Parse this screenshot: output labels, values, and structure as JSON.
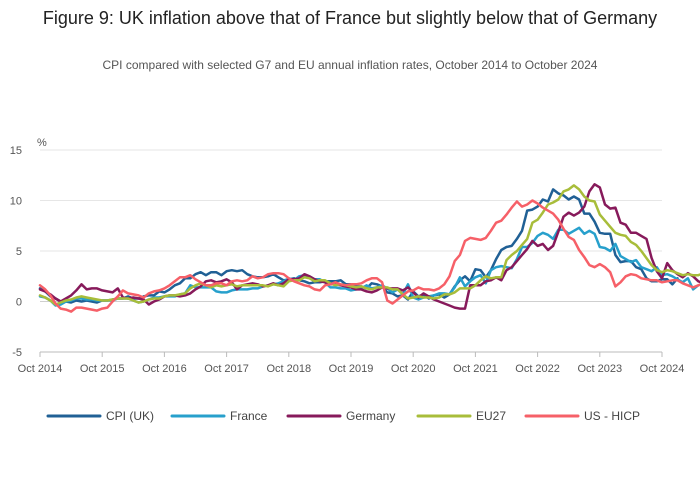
{
  "title": "Figure 9: UK inflation above that of France but slightly below that of Germany",
  "subtitle": "CPI compared with selected G7 and EU annual inflation rates, October 2014 to October 2024",
  "chart_data": {
    "type": "line",
    "title": "Figure 9: UK inflation above that of France but slightly below that of Germany",
    "subtitle": "CPI compared with selected G7 and EU annual inflation rates, October 2014 to October 2024",
    "ylabel": "%",
    "ylim": [
      -5,
      15
    ],
    "yticks": [
      -5,
      0,
      5,
      10,
      15
    ],
    "xlim": [
      "Oct 2014",
      "Oct 2024"
    ],
    "xticks": [
      "Oct 2014",
      "Oct 2015",
      "Oct 2016",
      "Oct 2017",
      "Oct 2018",
      "Oct 2019",
      "Oct 2020",
      "Oct 2021",
      "Oct 2022",
      "Oct 2023",
      "Oct 2024"
    ],
    "grid": true,
    "legend_position": "bottom",
    "x_resolution": "monthly values from Oct 2014",
    "series": [
      {
        "name": "CPI (UK)",
        "color": "#206095",
        "values": [
          1.3,
          1.0,
          0.5,
          0.3,
          0.0,
          0.0,
          -0.1,
          0.1,
          0.0,
          0.1,
          0.0,
          -0.1,
          0.1,
          0.1,
          0.2,
          0.3,
          0.3,
          0.5,
          0.3,
          0.3,
          0.5,
          0.6,
          0.6,
          1.0,
          0.9,
          1.2,
          1.6,
          1.8,
          2.3,
          2.3,
          2.7,
          2.9,
          2.6,
          2.9,
          2.9,
          2.6,
          3.0,
          3.1,
          3.0,
          3.1,
          2.7,
          2.5,
          2.4,
          2.4,
          2.5,
          2.7,
          2.4,
          2.1,
          2.2,
          2.3,
          2.1,
          2.0,
          1.8,
          1.9,
          1.9,
          2.0,
          2.0,
          2.0,
          2.1,
          1.7,
          1.7,
          1.5,
          1.5,
          1.3,
          1.8,
          1.7,
          1.5,
          0.9,
          0.8,
          0.5,
          0.6,
          0.2,
          1.0,
          0.5,
          0.7,
          0.3,
          0.6,
          0.7,
          0.4,
          0.7,
          1.5,
          2.1,
          2.5,
          2.0,
          3.2,
          3.1,
          2.4,
          3.1,
          4.2,
          5.1,
          5.4,
          5.5,
          6.2,
          7.0,
          9.0,
          9.1,
          9.4,
          10.1,
          9.9,
          11.1,
          10.7,
          10.5,
          10.1,
          10.4,
          10.1,
          8.7,
          8.7,
          7.9,
          6.8,
          6.7,
          6.7,
          4.6,
          3.9,
          4.0,
          4.0,
          3.4,
          3.2,
          2.3,
          2.0,
          2.0,
          2.2,
          2.2,
          1.7,
          2.3
        ]
      },
      {
        "name": "France",
        "color": "#27a0cc",
        "values": [
          0.5,
          0.4,
          0.1,
          -0.4,
          -0.3,
          0.0,
          0.1,
          0.3,
          0.3,
          0.2,
          0.2,
          0.1,
          0.1,
          0.1,
          0.1,
          0.3,
          0.3,
          0.3,
          0.1,
          -0.1,
          0.0,
          0.2,
          0.4,
          0.4,
          0.5,
          0.5,
          0.5,
          0.7,
          0.8,
          1.6,
          1.4,
          1.4,
          1.4,
          1.4,
          1.0,
          0.9,
          0.9,
          1.1,
          1.2,
          1.2,
          1.2,
          1.3,
          1.3,
          1.5,
          1.6,
          1.7,
          1.8,
          2.0,
          2.3,
          2.1,
          2.5,
          2.6,
          2.5,
          2.2,
          2.2,
          1.9,
          1.4,
          1.4,
          1.3,
          1.3,
          1.1,
          1.2,
          1.3,
          1.6,
          1.3,
          1.4,
          1.6,
          1.3,
          0.9,
          1.2,
          0.7,
          1.7,
          0.4,
          0.2,
          0.4,
          0.5,
          0.6,
          0.8,
          0.8,
          0.7,
          1.4,
          2.4,
          1.5,
          2.0,
          2.4,
          2.6,
          1.8,
          3.1,
          3.4,
          3.5,
          3.4,
          3.3,
          4.2,
          5.4,
          5.4,
          5.8,
          6.5,
          6.8,
          6.6,
          6.2,
          7.1,
          7.1,
          6.7,
          7.0,
          7.3,
          6.7,
          7.0,
          6.7,
          5.4,
          5.3,
          5.0,
          5.7,
          4.5,
          4.2,
          3.9,
          4.1,
          3.4,
          3.2,
          3.0,
          3.4,
          2.6,
          2.7,
          2.5,
          2.2,
          1.9,
          2.3,
          1.2,
          1.6
        ]
      },
      {
        "name": "Germany",
        "color": "#871a5b",
        "values": [
          1.2,
          1.0,
          0.7,
          0.3,
          0.0,
          0.3,
          0.6,
          1.1,
          1.7,
          1.2,
          1.3,
          1.3,
          1.1,
          1.0,
          0.9,
          1.3,
          0.4,
          0.3,
          0.4,
          0.3,
          0.2,
          -0.3,
          0.0,
          0.2,
          0.5,
          0.6,
          0.6,
          0.5,
          0.6,
          0.8,
          1.2,
          1.5,
          2.0,
          2.1,
          1.9,
          2.0,
          2.2,
          1.9,
          1.2,
          1.6,
          1.7,
          1.8,
          1.7,
          1.5,
          1.6,
          1.8,
          1.6,
          1.8,
          2.2,
          2.2,
          2.3,
          2.7,
          2.5,
          2.2,
          2.0,
          1.9,
          1.7,
          1.7,
          1.6,
          1.5,
          1.4,
          1.2,
          1.2,
          1.0,
          0.9,
          1.1,
          1.4,
          1.3,
          1.3,
          1.3,
          1.1,
          1.4,
          0.9,
          0.4,
          0.8,
          0.5,
          0.2,
          0.0,
          -0.2,
          -0.4,
          -0.6,
          -0.7,
          -0.7,
          1.6,
          1.6,
          1.6,
          2.0,
          2.1,
          2.4,
          2.1,
          3.1,
          3.4,
          4.0,
          4.6,
          5.2,
          6.0,
          5.5,
          5.7,
          5.1,
          5.5,
          6.9,
          8.4,
          8.8,
          8.5,
          8.8,
          9.4,
          10.9,
          11.6,
          11.3,
          9.6,
          9.2,
          9.3,
          7.8,
          7.6,
          6.8,
          6.8,
          6.5,
          6.2,
          4.3,
          3.0,
          2.3,
          3.8,
          3.1,
          2.7,
          2.4,
          2.8,
          2.5,
          2.0,
          1.8,
          2.4
        ]
      },
      {
        "name": "EU27",
        "color": "#a8bd3a",
        "values": [
          0.6,
          0.4,
          0.1,
          -0.3,
          -0.1,
          0.1,
          0.2,
          0.4,
          0.5,
          0.4,
          0.3,
          0.2,
          0.1,
          0.1,
          0.2,
          0.3,
          0.3,
          0.3,
          0.1,
          -0.1,
          0.0,
          0.2,
          0.3,
          0.3,
          0.5,
          0.6,
          0.6,
          0.7,
          0.8,
          1.3,
          1.6,
          1.8,
          1.6,
          1.4,
          1.6,
          1.5,
          1.6,
          1.7,
          1.5,
          1.6,
          1.6,
          1.6,
          1.6,
          1.6,
          1.5,
          1.7,
          1.6,
          1.5,
          2.0,
          2.1,
          2.1,
          2.4,
          2.3,
          2.0,
          2.1,
          2.1,
          1.8,
          1.6,
          1.7,
          1.6,
          1.5,
          1.4,
          1.5,
          1.3,
          1.2,
          1.4,
          1.4,
          1.4,
          1.2,
          1.2,
          0.7,
          0.3,
          0.4,
          0.5,
          0.4,
          0.4,
          0.3,
          0.4,
          0.7,
          0.7,
          0.9,
          1.3,
          1.3,
          1.3,
          1.6,
          2.1,
          2.5,
          2.3,
          2.4,
          2.4,
          4.1,
          4.6,
          5.0,
          5.6,
          6.2,
          7.8,
          8.1,
          8.8,
          9.6,
          9.8,
          10.1,
          10.9,
          11.1,
          11.5,
          11.1,
          10.4,
          10.0,
          9.9,
          8.6,
          8.0,
          7.4,
          6.8,
          6.6,
          6.5,
          5.9,
          5.6,
          5.0,
          4.3,
          3.6,
          3.1,
          2.9,
          3.1,
          3.0,
          2.8,
          2.6,
          2.7,
          2.6,
          2.6,
          2.8,
          2.5,
          2.2,
          2.3
        ]
      },
      {
        "name": "US - HICP",
        "color": "#f66068",
        "values": [
          1.6,
          1.2,
          0.6,
          -0.2,
          -0.7,
          -0.8,
          -1.0,
          -0.6,
          -0.6,
          -0.7,
          -0.8,
          -0.9,
          -0.7,
          -0.6,
          0.0,
          0.5,
          1.1,
          0.8,
          0.7,
          0.6,
          0.4,
          0.8,
          1.0,
          1.1,
          1.3,
          1.6,
          2.0,
          2.4,
          2.4,
          2.6,
          2.2,
          1.9,
          1.6,
          1.6,
          1.8,
          1.8,
          1.6,
          2.0,
          2.1,
          2.0,
          2.1,
          2.5,
          2.3,
          2.4,
          2.7,
          2.8,
          2.8,
          2.7,
          2.3,
          2.0,
          1.8,
          1.6,
          1.5,
          1.2,
          1.1,
          1.6,
          1.7,
          1.9,
          1.7,
          1.6,
          1.7,
          1.7,
          1.8,
          2.1,
          2.3,
          2.3,
          1.9,
          0.1,
          -0.2,
          0.2,
          0.6,
          1.0,
          1.1,
          1.4,
          1.2,
          1.2,
          1.1,
          1.3,
          1.7,
          2.5,
          4.0,
          4.6,
          6.0,
          6.3,
          6.2,
          6.1,
          6.3,
          7.0,
          7.8,
          8.0,
          8.6,
          9.3,
          9.9,
          9.4,
          9.6,
          10.0,
          9.7,
          9.3,
          9.0,
          8.7,
          8.1,
          7.2,
          6.4,
          6.1,
          5.1,
          4.4,
          3.6,
          3.4,
          3.7,
          3.4,
          2.9,
          1.5,
          1.9,
          2.5,
          2.7,
          2.6,
          2.3,
          2.2,
          2.1,
          2.1,
          1.9,
          2.0,
          2.1,
          2.1,
          1.8,
          1.6,
          1.4,
          1.6,
          1.8,
          1.9,
          2.0
        ]
      }
    ]
  }
}
